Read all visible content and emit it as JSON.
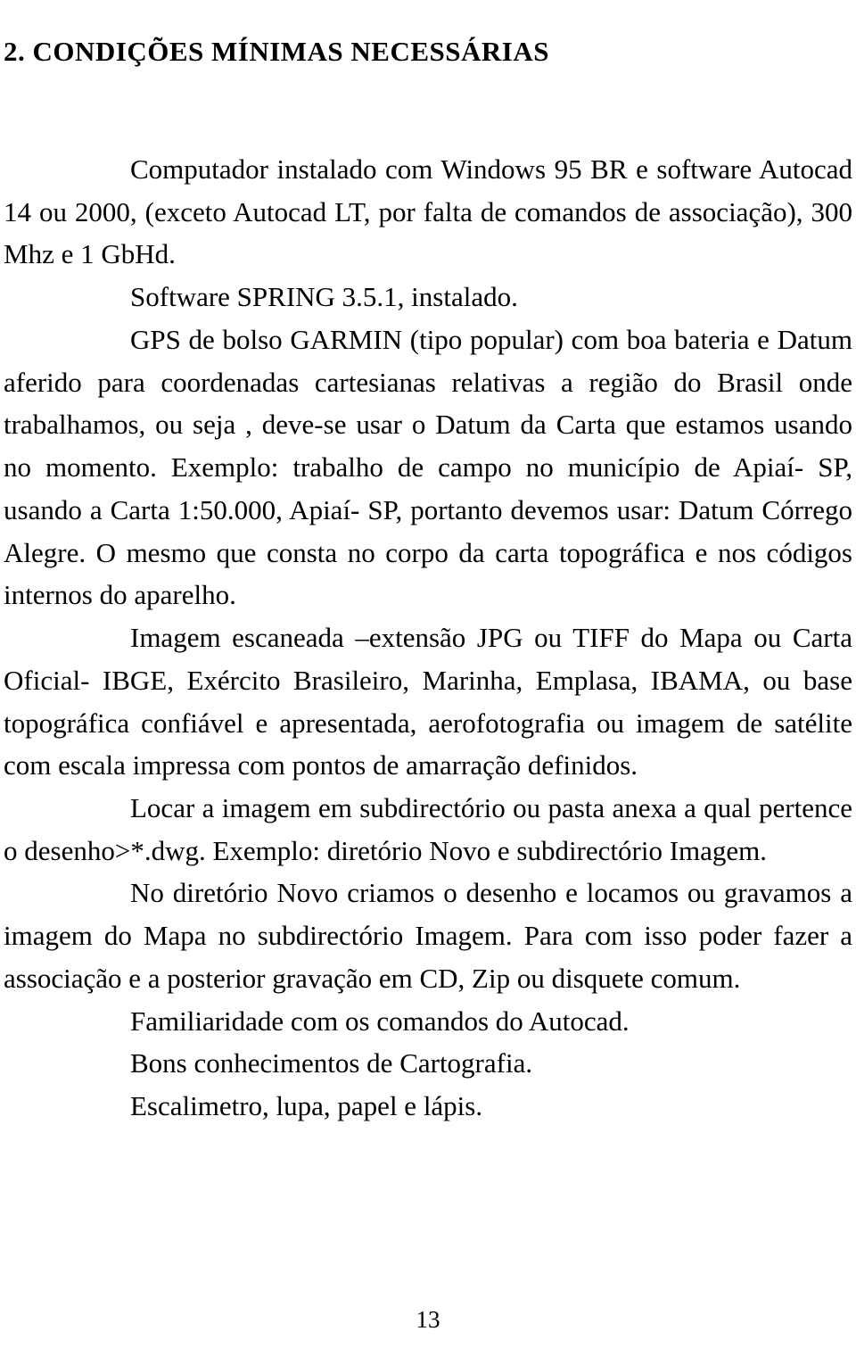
{
  "heading": "2.  CONDIÇÕES MÍNIMAS NECESSÁRIAS",
  "p1": "Computador instalado com Windows 95 BR e software Autocad 14 ou 2000, (exceto Autocad LT, por falta de comandos de associação), 300 Mhz e 1 GbHd.",
  "p2": "Software SPRING 3.5.1, instalado.",
  "p3": "GPS de bolso GARMIN (tipo popular) com boa bateria e Datum aferido para coordenadas cartesianas relativas a região do Brasil onde trabalhamos, ou seja , deve-se usar o Datum da Carta que estamos usando no momento. Exemplo: trabalho de campo no município de Apiaí- SP, usando a Carta 1:50.000, Apiaí- SP, portanto devemos usar: Datum Córrego Alegre. O mesmo que consta no corpo da carta topográfica e nos códigos internos do aparelho.",
  "p4": "Imagem escaneada –extensão JPG ou TIFF do Mapa ou Carta Oficial- IBGE, Exército Brasileiro, Marinha, Emplasa, IBAMA, ou base topográfica confiável e apresentada, aerofotografia ou imagem de satélite com escala impressa com pontos de amarração definidos.",
  "p5": "Locar a imagem em subdirectório ou pasta anexa a qual pertence o desenho>*.dwg. Exemplo: diretório Novo e subdirectório Imagem.",
  "p6": "No diretório Novo criamos o desenho e locamos ou gravamos a imagem do Mapa no subdirectório Imagem. Para com isso poder fazer a associação e a posterior gravação em CD, Zip ou disquete comum.",
  "p7": "Familiaridade com os comandos do Autocad.",
  "p8": "Bons conhecimentos de Cartografia.",
  "p9": "Escalimetro, lupa, papel e lápis.",
  "pagenum": "13"
}
